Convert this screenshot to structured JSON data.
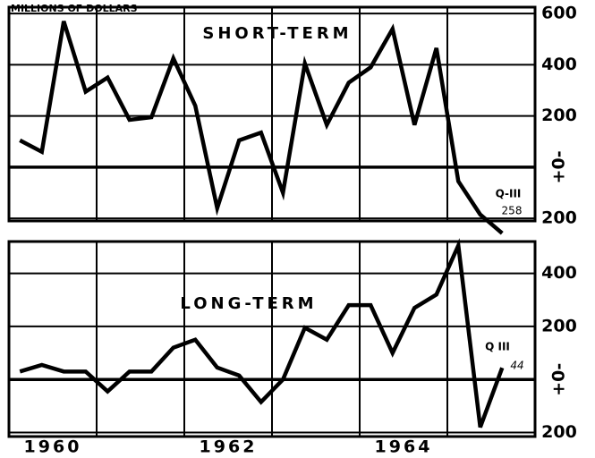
{
  "chart_data": [
    {
      "type": "line",
      "title": "SHORT-TERM",
      "subtitle": "MILLIONS OF DOLLARS",
      "annotations": [
        "Q-III",
        "258"
      ],
      "xlim": [
        1960,
        1966
      ],
      "xgrid": [
        1961,
        1962,
        1963,
        1964,
        1965
      ],
      "x": [
        1960.125,
        1960.375,
        1960.625,
        1960.875,
        1961.125,
        1961.375,
        1961.625,
        1961.875,
        1962.125,
        1962.375,
        1962.625,
        1962.875,
        1963.125,
        1963.375,
        1963.625,
        1963.875,
        1964.125,
        1964.375,
        1964.625,
        1964.875,
        1965.125,
        1965.375,
        1965.625
      ],
      "series": [
        {
          "name": "SHORT-TERM",
          "color": "#000000",
          "values": [
            105,
            60,
            570,
            295,
            350,
            185,
            195,
            425,
            240,
            -160,
            105,
            135,
            -100,
            405,
            165,
            330,
            390,
            540,
            165,
            465,
            -55,
            -185,
            -258
          ]
        }
      ],
      "ylim": [
        -210,
        625
      ],
      "yticks": [
        600,
        400,
        200,
        {
          "value": 0,
          "label": "+0-"
        },
        {
          "value": -200,
          "label": "200"
        }
      ]
    },
    {
      "type": "line",
      "title": "LONG-TERM",
      "annotations": [
        "Q III",
        "44"
      ],
      "xlim": [
        1960,
        1966
      ],
      "xgrid": [
        1961,
        1962,
        1963,
        1964,
        1965
      ],
      "xticks": [
        {
          "value": 1960.5,
          "label": "1960"
        },
        {
          "value": 1962.5,
          "label": "1962"
        },
        {
          "value": 1964.5,
          "label": "1964"
        }
      ],
      "x": [
        1960.125,
        1960.375,
        1960.625,
        1960.875,
        1961.125,
        1961.375,
        1961.625,
        1961.875,
        1962.125,
        1962.375,
        1962.625,
        1962.875,
        1963.125,
        1963.375,
        1963.625,
        1963.875,
        1964.125,
        1964.375,
        1964.625,
        1964.875,
        1965.125,
        1965.375,
        1965.625
      ],
      "series": [
        {
          "name": "LONG-TERM",
          "color": "#000000",
          "values": [
            30,
            55,
            30,
            30,
            -45,
            30,
            30,
            120,
            150,
            45,
            15,
            -85,
            0,
            195,
            150,
            280,
            280,
            100,
            270,
            320,
            505,
            -180,
            44
          ]
        }
      ],
      "ylim": [
        -215,
        520
      ],
      "yticks": [
        400,
        200,
        {
          "value": 0,
          "label": "+0-"
        },
        {
          "value": -200,
          "label": "200"
        }
      ]
    }
  ]
}
